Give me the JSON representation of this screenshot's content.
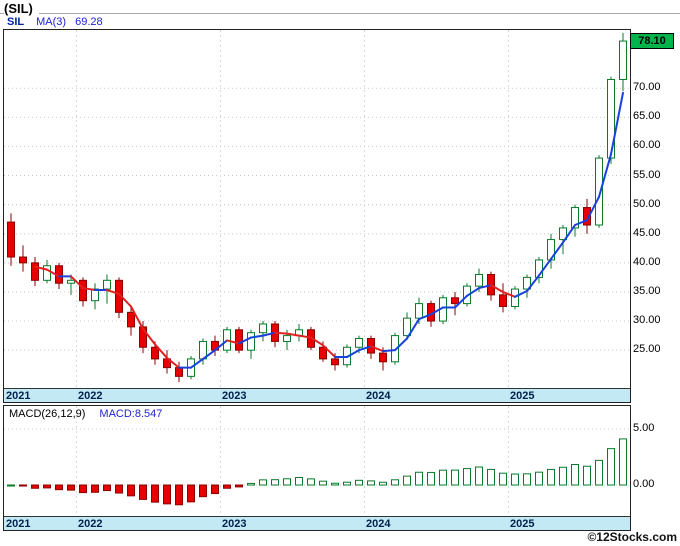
{
  "header": {
    "title": "(SIL)"
  },
  "legend": {
    "symbol": "SIL",
    "ma_label": "MA(3)",
    "ma_value": "69.28"
  },
  "price_axis": {
    "last_price_label": "78.10"
  },
  "macd": {
    "label": "MACD(26,12,9)",
    "value_label": "MACD:8.547",
    "ticks": [
      {
        "value": 5,
        "label": "5.00"
      },
      {
        "value": 0,
        "label": "0.00"
      }
    ]
  },
  "watermark": "©12Stocks.com",
  "colors": {
    "up": "#0a7a2a",
    "down": "#e60000",
    "down_border": "#8b0000",
    "ma_up": "#1741d9",
    "ma_down": "#e02020",
    "band": "#c2e9f4",
    "badge_bg": "#00b44c",
    "grid": "#c8c8c8",
    "year_grid": "#d8d8d8",
    "year_text": "#00214d"
  },
  "chart_data": {
    "type": "candlestick",
    "symbol": "SIL",
    "title": "(SIL)",
    "interval": "monthly",
    "ylim": [
      18.5,
      80
    ],
    "last": 78.1,
    "overlay": {
      "name": "MA(3)",
      "window": 3,
      "last_value": 69.28
    },
    "indicator": {
      "name": "MACD",
      "params": [
        26,
        12,
        9
      ],
      "last_value": 8.547
    },
    "price_ticks": [
      {
        "value": 70,
        "label": "70.00"
      },
      {
        "value": 65,
        "label": "65.00"
      },
      {
        "value": 60,
        "label": "60.00"
      },
      {
        "value": 55,
        "label": "55.00"
      },
      {
        "value": 50,
        "label": "50.00"
      },
      {
        "value": 45,
        "label": "45.00"
      },
      {
        "value": 40,
        "label": "40.00"
      },
      {
        "value": 35,
        "label": "35.00"
      },
      {
        "value": 30,
        "label": "30.00"
      },
      {
        "value": 25,
        "label": "25.00"
      }
    ],
    "year_ticks": [
      {
        "label": "2021",
        "index": 0
      },
      {
        "label": "2022",
        "index": 6
      },
      {
        "label": "2023",
        "index": 18
      },
      {
        "label": "2024",
        "index": 30
      },
      {
        "label": "2025",
        "index": 42
      }
    ],
    "candles": [
      {
        "t": "2021-07",
        "o": 47.0,
        "h": 48.5,
        "l": 39.5,
        "c": 41.0
      },
      {
        "t": "2021-08",
        "o": 41.0,
        "h": 43.0,
        "l": 38.5,
        "c": 40.0
      },
      {
        "t": "2021-09",
        "o": 40.0,
        "h": 41.0,
        "l": 36.0,
        "c": 37.0
      },
      {
        "t": "2021-10",
        "o": 37.0,
        "h": 40.5,
        "l": 36.5,
        "c": 39.5
      },
      {
        "t": "2021-11",
        "o": 39.5,
        "h": 40.0,
        "l": 35.5,
        "c": 36.5
      },
      {
        "t": "2021-12",
        "o": 36.5,
        "h": 38.0,
        "l": 34.5,
        "c": 37.0
      },
      {
        "t": "2022-01",
        "o": 37.0,
        "h": 37.5,
        "l": 32.5,
        "c": 33.5
      },
      {
        "t": "2022-02",
        "o": 33.5,
        "h": 36.5,
        "l": 32.0,
        "c": 35.5
      },
      {
        "t": "2022-03",
        "o": 35.5,
        "h": 38.0,
        "l": 33.0,
        "c": 37.0
      },
      {
        "t": "2022-04",
        "o": 37.0,
        "h": 37.5,
        "l": 30.5,
        "c": 31.5
      },
      {
        "t": "2022-05",
        "o": 31.5,
        "h": 32.5,
        "l": 27.5,
        "c": 29.0
      },
      {
        "t": "2022-06",
        "o": 29.0,
        "h": 30.0,
        "l": 24.5,
        "c": 25.5
      },
      {
        "t": "2022-07",
        "o": 25.5,
        "h": 26.5,
        "l": 22.5,
        "c": 23.5
      },
      {
        "t": "2022-08",
        "o": 23.5,
        "h": 25.0,
        "l": 21.0,
        "c": 22.0
      },
      {
        "t": "2022-09",
        "o": 22.0,
        "h": 23.0,
        "l": 19.5,
        "c": 20.5
      },
      {
        "t": "2022-10",
        "o": 20.5,
        "h": 24.0,
        "l": 20.0,
        "c": 23.5
      },
      {
        "t": "2022-11",
        "o": 23.5,
        "h": 27.0,
        "l": 22.5,
        "c": 26.5
      },
      {
        "t": "2022-12",
        "o": 26.5,
        "h": 27.5,
        "l": 24.0,
        "c": 25.0
      },
      {
        "t": "2023-01",
        "o": 25.0,
        "h": 29.0,
        "l": 24.5,
        "c": 28.5
      },
      {
        "t": "2023-02",
        "o": 28.5,
        "h": 29.0,
        "l": 24.5,
        "c": 25.0
      },
      {
        "t": "2023-03",
        "o": 25.0,
        "h": 28.5,
        "l": 23.5,
        "c": 28.0
      },
      {
        "t": "2023-04",
        "o": 28.0,
        "h": 30.0,
        "l": 26.5,
        "c": 29.5
      },
      {
        "t": "2023-05",
        "o": 29.5,
        "h": 30.0,
        "l": 25.5,
        "c": 26.5
      },
      {
        "t": "2023-06",
        "o": 26.5,
        "h": 28.5,
        "l": 25.0,
        "c": 27.5
      },
      {
        "t": "2023-07",
        "o": 27.5,
        "h": 29.5,
        "l": 26.5,
        "c": 28.5
      },
      {
        "t": "2023-08",
        "o": 28.5,
        "h": 29.0,
        "l": 25.0,
        "c": 25.5
      },
      {
        "t": "2023-09",
        "o": 25.5,
        "h": 26.5,
        "l": 23.0,
        "c": 23.5
      },
      {
        "t": "2023-10",
        "o": 23.5,
        "h": 24.5,
        "l": 21.5,
        "c": 22.5
      },
      {
        "t": "2023-11",
        "o": 22.5,
        "h": 26.0,
        "l": 22.0,
        "c": 25.5
      },
      {
        "t": "2023-12",
        "o": 25.5,
        "h": 27.5,
        "l": 24.5,
        "c": 27.0
      },
      {
        "t": "2024-01",
        "o": 27.0,
        "h": 27.5,
        "l": 23.5,
        "c": 24.5
      },
      {
        "t": "2024-02",
        "o": 24.5,
        "h": 25.5,
        "l": 21.5,
        "c": 23.0
      },
      {
        "t": "2024-03",
        "o": 23.0,
        "h": 28.0,
        "l": 22.5,
        "c": 27.5
      },
      {
        "t": "2024-04",
        "o": 27.5,
        "h": 31.5,
        "l": 27.0,
        "c": 30.5
      },
      {
        "t": "2024-05",
        "o": 30.5,
        "h": 34.0,
        "l": 29.5,
        "c": 33.0
      },
      {
        "t": "2024-06",
        "o": 33.0,
        "h": 33.5,
        "l": 29.0,
        "c": 30.0
      },
      {
        "t": "2024-07",
        "o": 30.0,
        "h": 34.5,
        "l": 29.5,
        "c": 34.0
      },
      {
        "t": "2024-08",
        "o": 34.0,
        "h": 35.0,
        "l": 31.0,
        "c": 33.0
      },
      {
        "t": "2024-09",
        "o": 33.0,
        "h": 36.5,
        "l": 32.5,
        "c": 36.0
      },
      {
        "t": "2024-10",
        "o": 36.0,
        "h": 39.0,
        "l": 35.0,
        "c": 38.0
      },
      {
        "t": "2024-11",
        "o": 38.0,
        "h": 38.5,
        "l": 33.5,
        "c": 34.5
      },
      {
        "t": "2024-12",
        "o": 34.5,
        "h": 36.5,
        "l": 31.5,
        "c": 32.5
      },
      {
        "t": "2025-01",
        "o": 32.5,
        "h": 36.0,
        "l": 32.0,
        "c": 35.5
      },
      {
        "t": "2025-02",
        "o": 35.5,
        "h": 38.0,
        "l": 34.0,
        "c": 37.5
      },
      {
        "t": "2025-03",
        "o": 37.5,
        "h": 41.0,
        "l": 36.5,
        "c": 40.5
      },
      {
        "t": "2025-04",
        "o": 40.5,
        "h": 45.0,
        "l": 39.0,
        "c": 44.0
      },
      {
        "t": "2025-05",
        "o": 44.0,
        "h": 46.5,
        "l": 41.5,
        "c": 46.0
      },
      {
        "t": "2025-06",
        "o": 46.0,
        "h": 50.0,
        "l": 44.5,
        "c": 49.5
      },
      {
        "t": "2025-07",
        "o": 49.5,
        "h": 51.0,
        "l": 45.0,
        "c": 46.5
      },
      {
        "t": "2025-08",
        "o": 46.5,
        "h": 58.5,
        "l": 46.0,
        "c": 58.0
      },
      {
        "t": "2025-09",
        "o": 58.0,
        "h": 72.0,
        "l": 57.0,
        "c": 71.5
      },
      {
        "t": "2025-10",
        "o": 71.5,
        "h": 79.5,
        "l": 69.5,
        "c": 78.1
      }
    ]
  }
}
